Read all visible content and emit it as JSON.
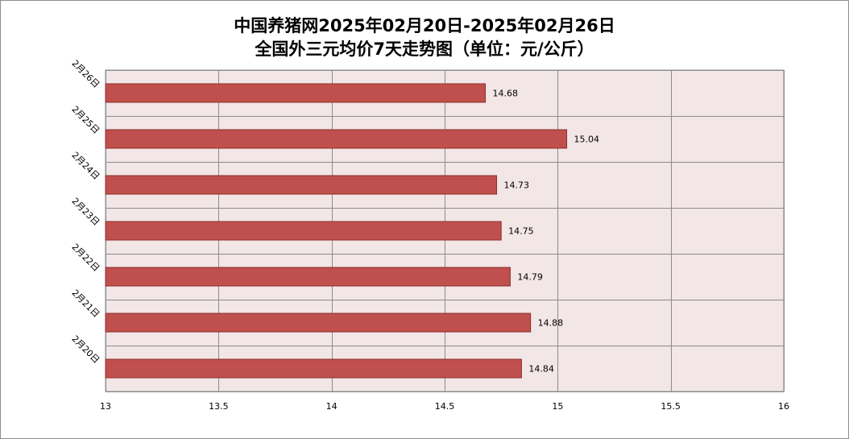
{
  "chart_data": {
    "type": "bar",
    "orientation": "horizontal",
    "title_line1": "中国养猪网2025年02月20日-2025年02月26日",
    "title_line2": "全国外三元均价7天走势图（单位：元/公斤）",
    "categories": [
      "2月20日",
      "2月21日",
      "2月22日",
      "2月23日",
      "2月24日",
      "2月25日",
      "2月26日"
    ],
    "values": [
      14.84,
      14.88,
      14.79,
      14.75,
      14.73,
      15.04,
      14.68
    ],
    "value_labels": [
      "14.84",
      "14.88",
      "14.79",
      "14.75",
      "14.73",
      "15.04",
      "14.68"
    ],
    "xlim": [
      13,
      16
    ],
    "xticks": [
      13,
      13.5,
      14,
      14.5,
      15,
      15.5,
      16
    ],
    "xtick_labels": [
      "13",
      "13.5",
      "14",
      "14.5",
      "15",
      "15.5",
      "16"
    ],
    "grid": true,
    "legend": "none",
    "colors": {
      "bar_fill": "#c0504d",
      "bar_stroke": "#8b2e2b",
      "plot_background": "#f2e6e6",
      "grid": "#8c8c8c"
    }
  }
}
